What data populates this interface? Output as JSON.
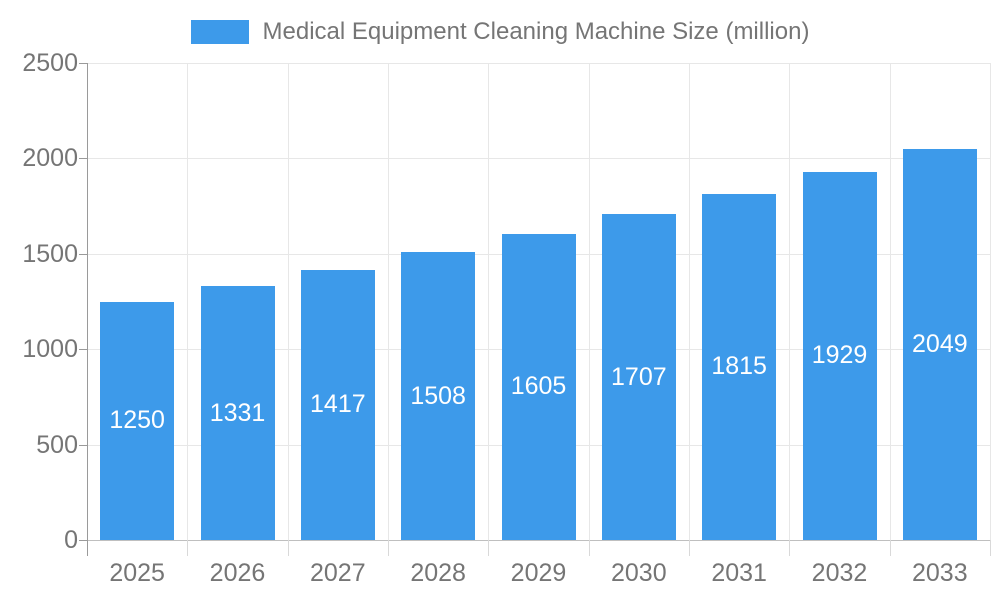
{
  "legend": {
    "label": "Medical Equipment Cleaning Machine Size (million)"
  },
  "chart_data": {
    "type": "bar",
    "title": "Medical Equipment Cleaning Machine Size (million)",
    "categories": [
      "2025",
      "2026",
      "2027",
      "2028",
      "2029",
      "2030",
      "2031",
      "2032",
      "2033"
    ],
    "values": [
      1250,
      1331,
      1417,
      1508,
      1605,
      1707,
      1815,
      1929,
      2049
    ],
    "xlabel": "",
    "ylabel": "",
    "ylim": [
      0,
      2500
    ],
    "yticks": [
      0,
      500,
      1000,
      1500,
      2000,
      2500
    ],
    "grid": true,
    "legend_position": "top",
    "value_labels": "inside-center",
    "colors": {
      "bar": "#3D9AEA",
      "bar_label": "#FFFFFF",
      "axis_text": "#757575",
      "grid_line": "#E7E7E7",
      "axis_line": "#9A9A9A",
      "baseline": "#BFBFBF",
      "minor_tick": "#D9D9D9",
      "background": "#FFFFFF"
    }
  }
}
